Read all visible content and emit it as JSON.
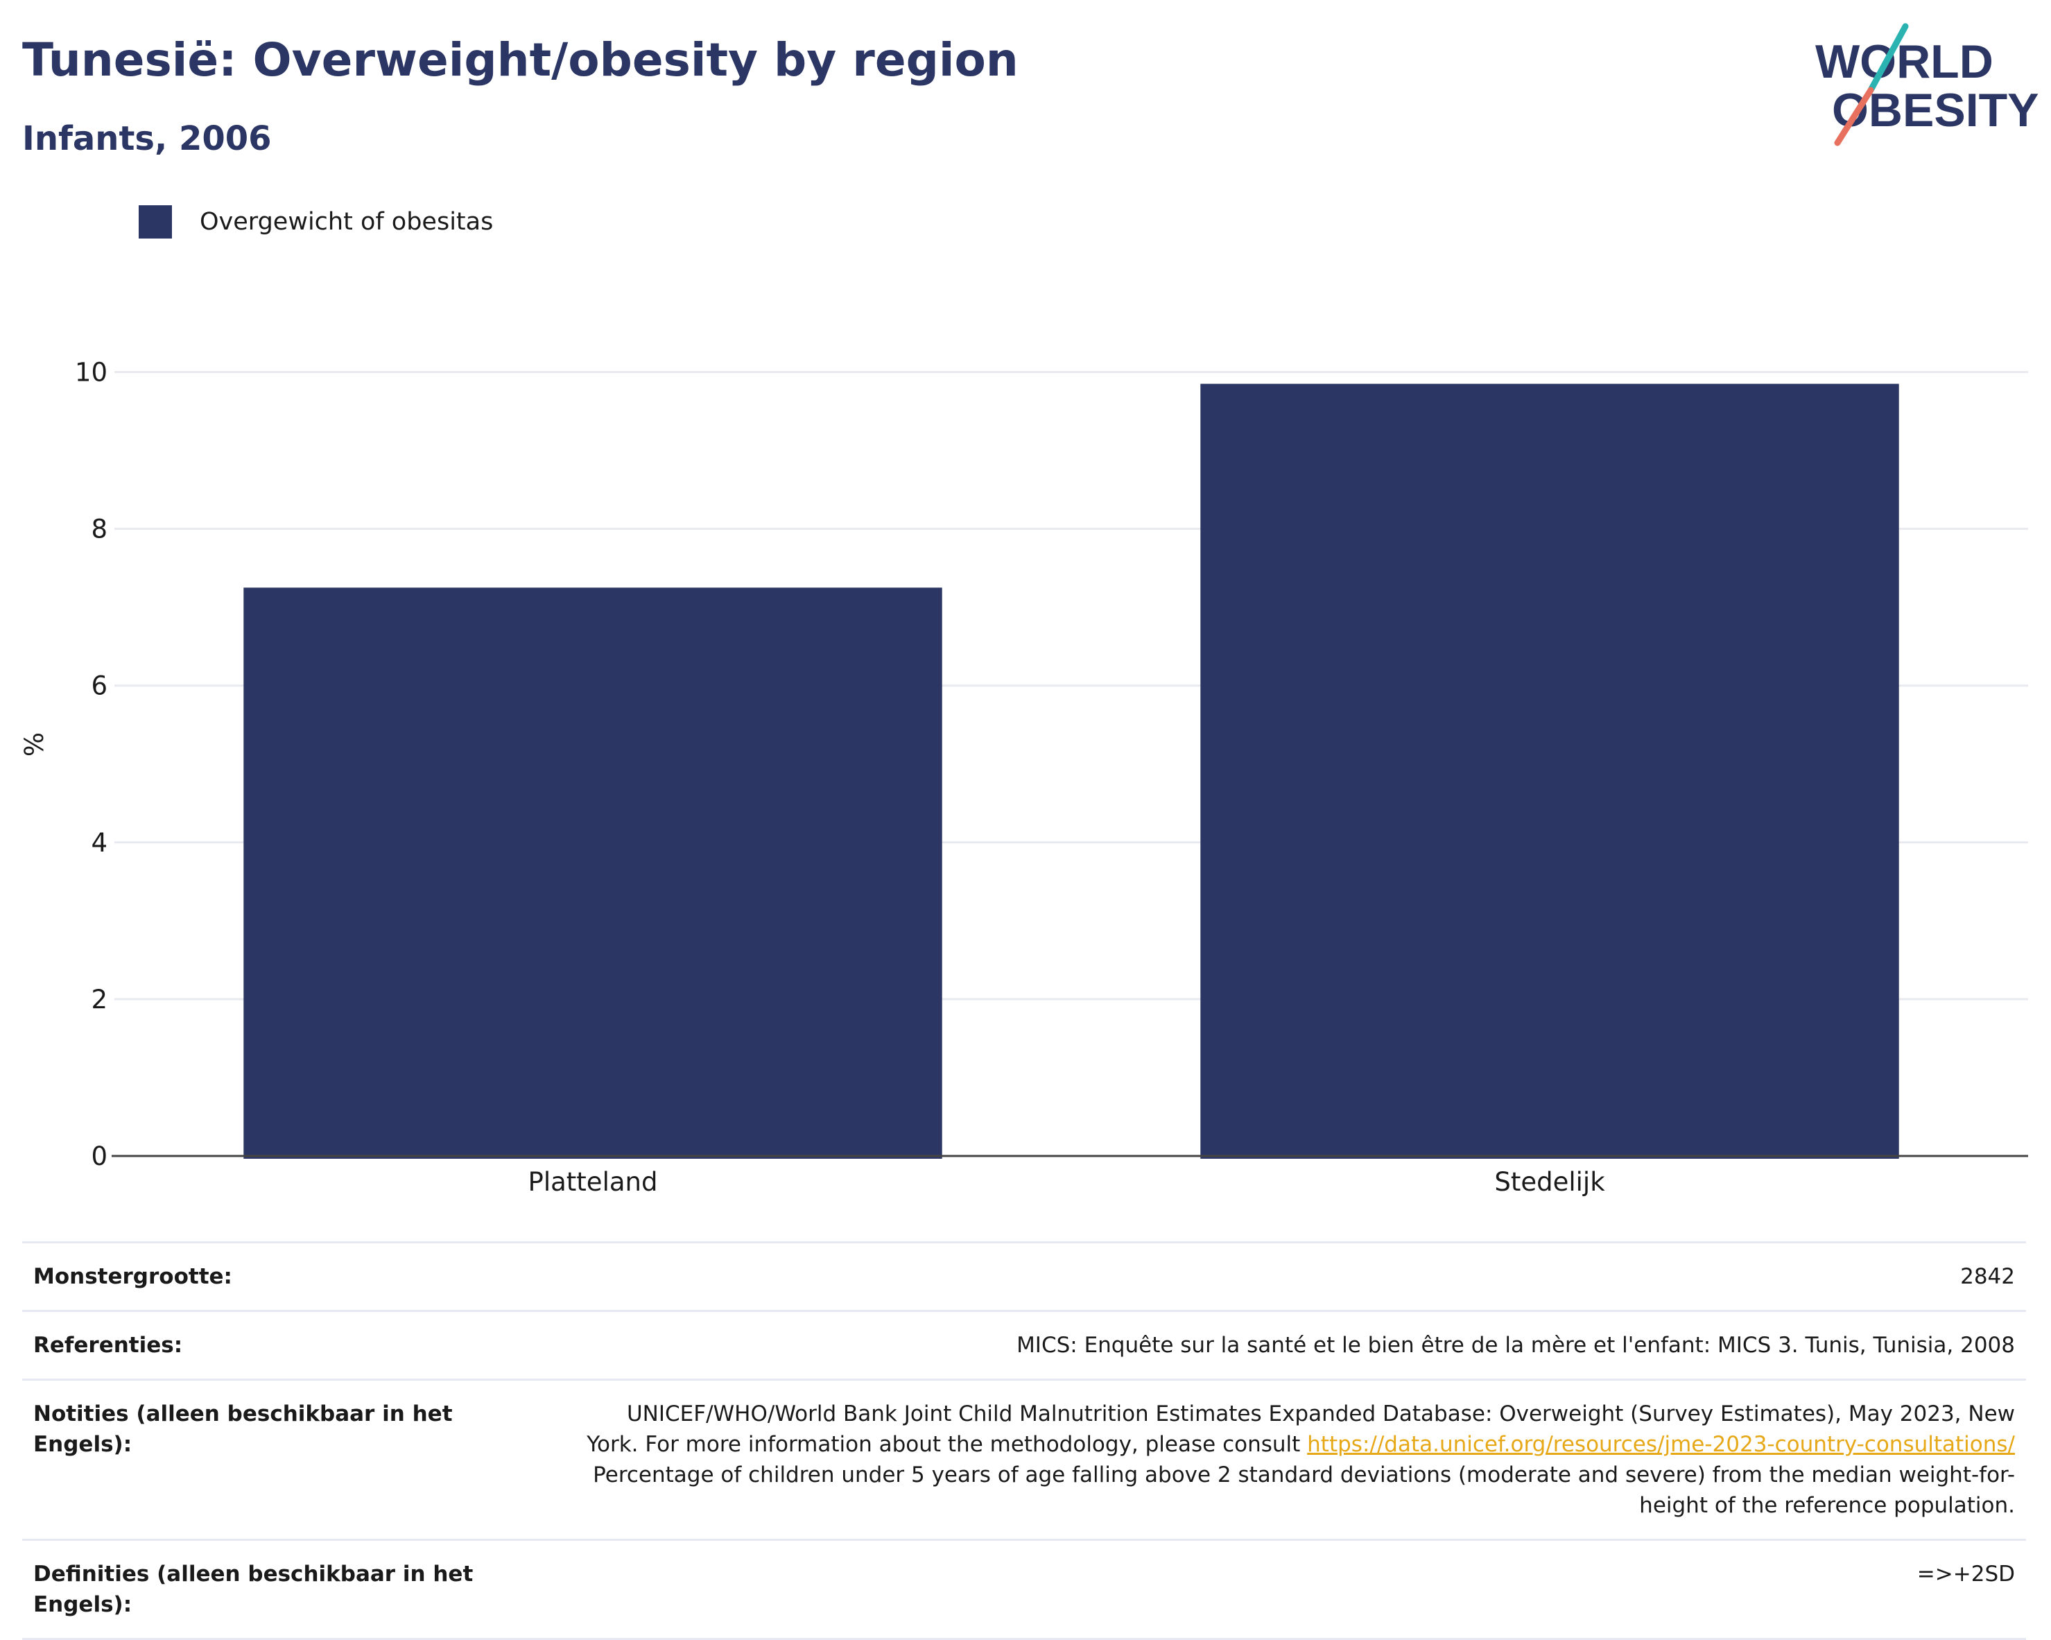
{
  "title": "Tunesië: Overweight/obesity by region",
  "subtitle": "Infants, 2006",
  "logo": {
    "line1": "WORLD",
    "line2": "OBESITY"
  },
  "legend": {
    "label": "Overgewicht of obesitas",
    "color": "#2b3664"
  },
  "chart_data": {
    "type": "bar",
    "title": "Tunesië: Overweight/obesity by region",
    "subtitle": "Infants, 2006",
    "categories": [
      "Platteland",
      "Stedelijk"
    ],
    "series": [
      {
        "name": "Overgewicht of obesitas",
        "values": [
          7.25,
          9.85
        ],
        "color": "#2b3664"
      }
    ],
    "ylabel": "%",
    "xlabel": "",
    "ylim": [
      0,
      10.5
    ],
    "yticks": [
      0,
      2,
      4,
      6,
      8,
      10
    ],
    "grid": true,
    "legend_position": "top-left"
  },
  "meta": {
    "sample_label": "Monstergrootte:",
    "sample_value": "2842",
    "refs_label": "Referenties:",
    "refs_value": "MICS: Enquête sur la santé et le bien être de la mère et l'enfant: MICS 3. Tunis, Tunisia, 2008",
    "notes_label": "Notities (alleen beschikbaar in het Engels):",
    "notes_line1": "UNICEF/WHO/World Bank Joint Child Malnutrition Estimates Expanded Database: Overweight (Survey Estimates), May 2023, New",
    "notes_line2": "York. For more information about the methodology, please consult",
    "notes_link": "https://data.unicef.org/resources/jme-2023-country-consultations/",
    "notes_line3": "Percentage of children under 5 years of age falling above 2 standard deviations (moderate and severe) from the median weight-for-",
    "notes_line4": "height of the reference population.",
    "defs_label": "Definities (alleen beschikbaar in het Engels):",
    "defs_value": "=>+2SD"
  }
}
